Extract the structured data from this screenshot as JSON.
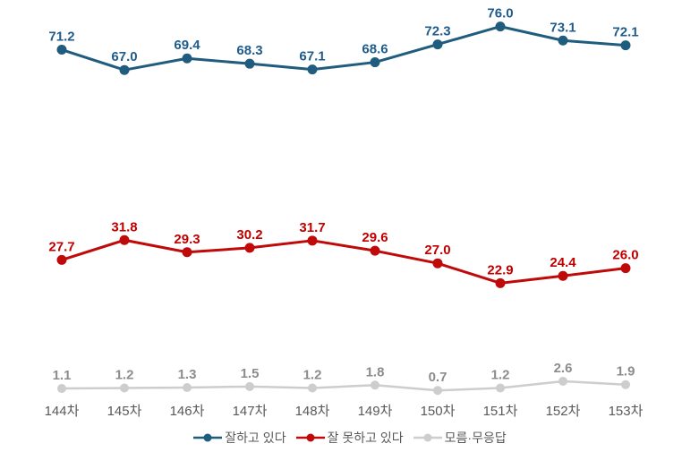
{
  "chart_data": {
    "type": "line",
    "title": "",
    "xlabel": "",
    "ylabel": "",
    "grid": false,
    "legend_position": "bottom",
    "ylim": [
      0,
      80
    ],
    "categories": [
      "144차",
      "145차",
      "146차",
      "147차",
      "148차",
      "149차",
      "150차",
      "151차",
      "152차",
      "153차"
    ],
    "series": [
      {
        "name": "잘하고 있다",
        "values": [
          71.2,
          67.0,
          69.4,
          68.3,
          67.1,
          68.6,
          72.3,
          76.0,
          73.1,
          72.1
        ],
        "color": "#1F5C7D",
        "label_color": "#1F5C8C"
      },
      {
        "name": "잘 못하고 있다",
        "values": [
          27.7,
          31.8,
          29.3,
          30.2,
          31.7,
          29.6,
          27.0,
          22.9,
          24.4,
          26.0
        ],
        "color": "#C00909",
        "label_color": "#C00000"
      },
      {
        "name": "모름·무응답",
        "values": [
          1.1,
          1.2,
          1.3,
          1.5,
          1.2,
          1.8,
          0.7,
          1.2,
          2.6,
          1.9
        ],
        "color": "#CDCDCD",
        "label_color": "#8C8C8C"
      }
    ],
    "background": "#FFFFFF",
    "axis_label_color": "#595959",
    "legend_text_color": "#595959"
  }
}
